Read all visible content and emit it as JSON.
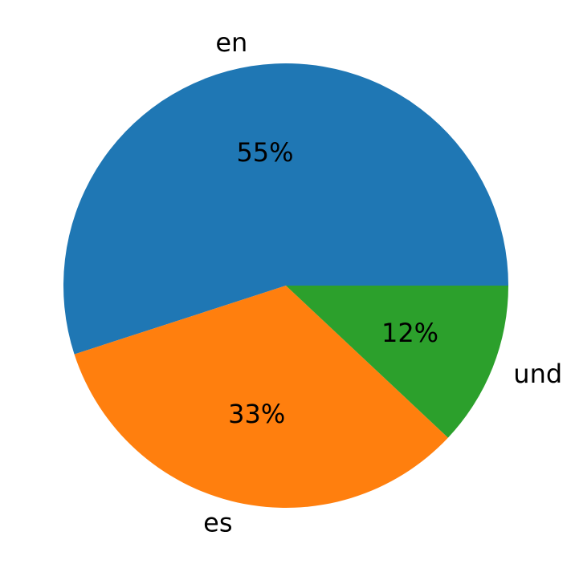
{
  "chart_data": {
    "type": "pie",
    "title": "",
    "categories": [
      "en",
      "es",
      "und"
    ],
    "values": [
      55,
      33,
      12
    ],
    "value_labels": [
      "55%",
      "33%",
      "12%"
    ],
    "colors": [
      "#1f77b4",
      "#ff7f0e",
      "#2ca02c"
    ],
    "start_angle_deg": 0,
    "direction": "counterclockwise",
    "legend": "none"
  }
}
